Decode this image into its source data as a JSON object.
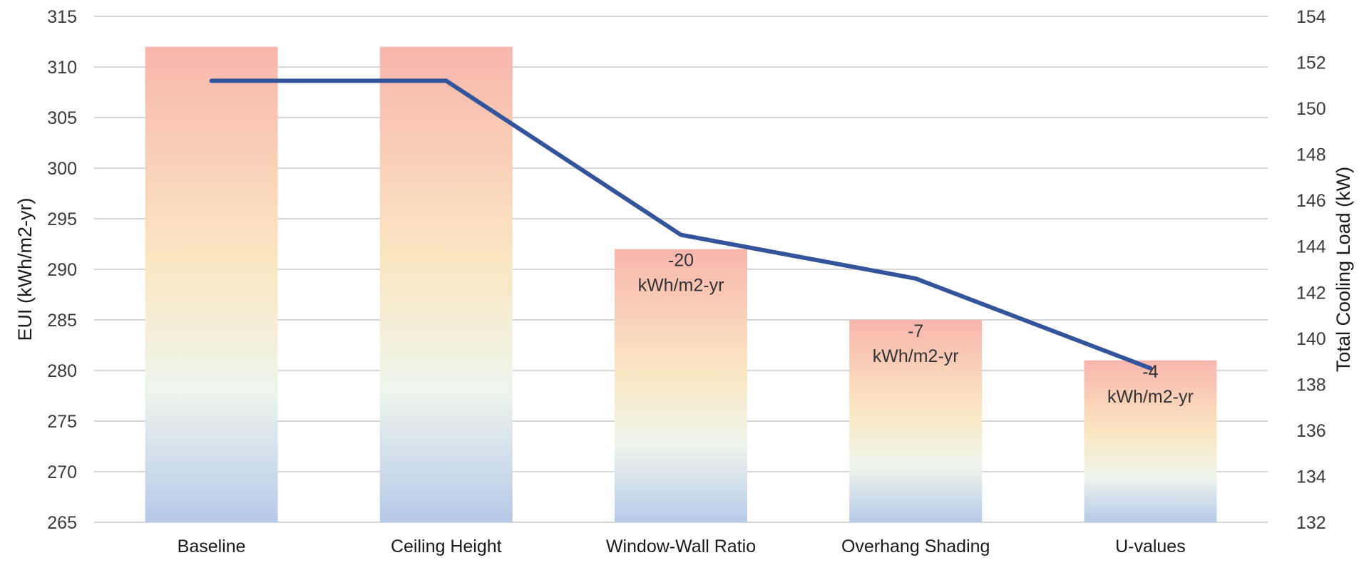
{
  "chart_data": {
    "type": "bar",
    "categories": [
      "Baseline",
      "Ceiling Height",
      "Window-Wall Ratio",
      "Overhang Shading",
      "U-values"
    ],
    "series": [
      {
        "type": "bar",
        "axis": "left",
        "values": [
          312,
          312,
          292,
          285,
          281
        ]
      },
      {
        "type": "line",
        "axis": "right",
        "values": [
          151.2,
          151.2,
          144.5,
          142.6,
          138.7
        ]
      }
    ],
    "bar_labels": [
      null,
      null,
      {
        "value": "-20",
        "unit": "kWh/m2-yr"
      },
      {
        "value": "-7",
        "unit": "kWh/m2-yr"
      },
      {
        "value": "-4",
        "unit": "kWh/m2-yr"
      }
    ],
    "ylabel": "EUI (kWh/m2-yr)",
    "y2label": "Total Cooling Load (kW)",
    "ylim": [
      265,
      315
    ],
    "y2lim": [
      132,
      154
    ],
    "yticks": [
      "265",
      "270",
      "275",
      "280",
      "285",
      "290",
      "295",
      "300",
      "305",
      "310",
      "315"
    ],
    "y2ticks": [
      "132",
      "134",
      "136",
      "138",
      "140",
      "142",
      "144",
      "146",
      "148",
      "150",
      "152",
      "154"
    ],
    "grid": true,
    "colors": {
      "bar_top": "#f8b6ad",
      "bar_mid_warm": "#fae7c2",
      "bar_mid_light": "#eef5ec",
      "bar_bottom": "#b7c9e8",
      "line": "#33549a",
      "grid": "#d6d6d6"
    }
  }
}
